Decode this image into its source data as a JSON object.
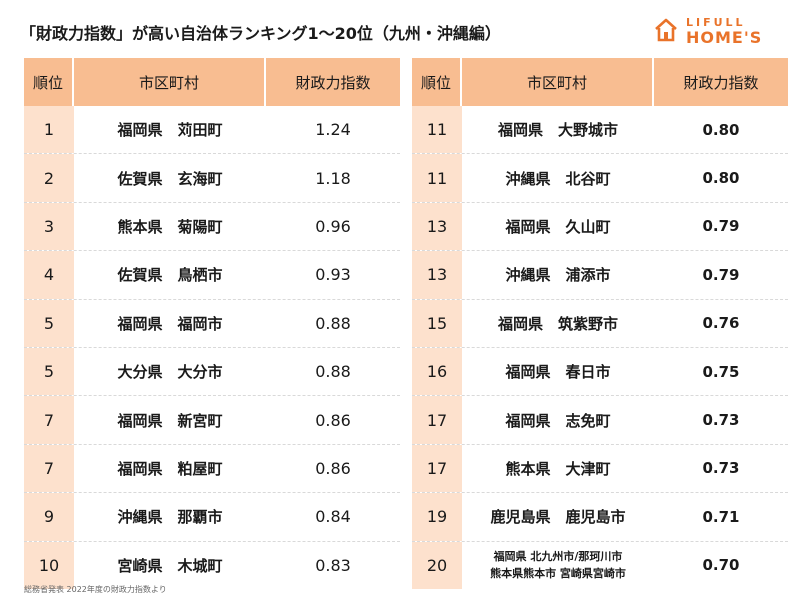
{
  "title": "「財政力指数」が高い自治体ランキング1〜20位（九州・沖縄編）",
  "logo": {
    "top": "LIFULL",
    "bottom": "HOME'S",
    "icon": "house-icon",
    "color": "#e9732a"
  },
  "colors": {
    "header": "#f8bd91",
    "rank_cell": "#fde1cd"
  },
  "headers": {
    "rank": "順位",
    "city": "市区町村",
    "value": "財政力指数"
  },
  "left_rows": [
    {
      "rank": "1",
      "city": "福岡県　苅田町",
      "value": "1.24"
    },
    {
      "rank": "2",
      "city": "佐賀県　玄海町",
      "value": "1.18"
    },
    {
      "rank": "3",
      "city": "熊本県　菊陽町",
      "value": "0.96"
    },
    {
      "rank": "4",
      "city": "佐賀県　鳥栖市",
      "value": "0.93"
    },
    {
      "rank": "5",
      "city": "福岡県　福岡市",
      "value": "0.88"
    },
    {
      "rank": "5",
      "city": "大分県　大分市",
      "value": "0.88"
    },
    {
      "rank": "7",
      "city": "福岡県　新宮町",
      "value": "0.86"
    },
    {
      "rank": "7",
      "city": "福岡県　粕屋町",
      "value": "0.86"
    },
    {
      "rank": "9",
      "city": "沖縄県　那覇市",
      "value": "0.84"
    },
    {
      "rank": "10",
      "city": "宮崎県　木城町",
      "value": "0.83"
    }
  ],
  "right_rows": [
    {
      "rank": "11",
      "city": "福岡県　大野城市",
      "value": "0.80"
    },
    {
      "rank": "11",
      "city": "沖縄県　北谷町",
      "value": "0.80"
    },
    {
      "rank": "13",
      "city": "福岡県　久山町",
      "value": "0.79"
    },
    {
      "rank": "13",
      "city": "沖縄県　浦添市",
      "value": "0.79"
    },
    {
      "rank": "15",
      "city": "福岡県　筑紫野市",
      "value": "0.76"
    },
    {
      "rank": "16",
      "city": "福岡県　春日市",
      "value": "0.75"
    },
    {
      "rank": "17",
      "city": "福岡県　志免町",
      "value": "0.73"
    },
    {
      "rank": "17",
      "city": "熊本県　大津町",
      "value": "0.73"
    },
    {
      "rank": "19",
      "city": "鹿児島県　鹿児島市",
      "value": "0.71"
    },
    {
      "rank": "20",
      "city_lines": [
        "福岡県 北九州市/那珂川市",
        "熊本県熊本市 宮崎県宮崎市"
      ],
      "value": "0.70"
    }
  ],
  "footnote": "総務省発表 2022年度の財政力指数より"
}
